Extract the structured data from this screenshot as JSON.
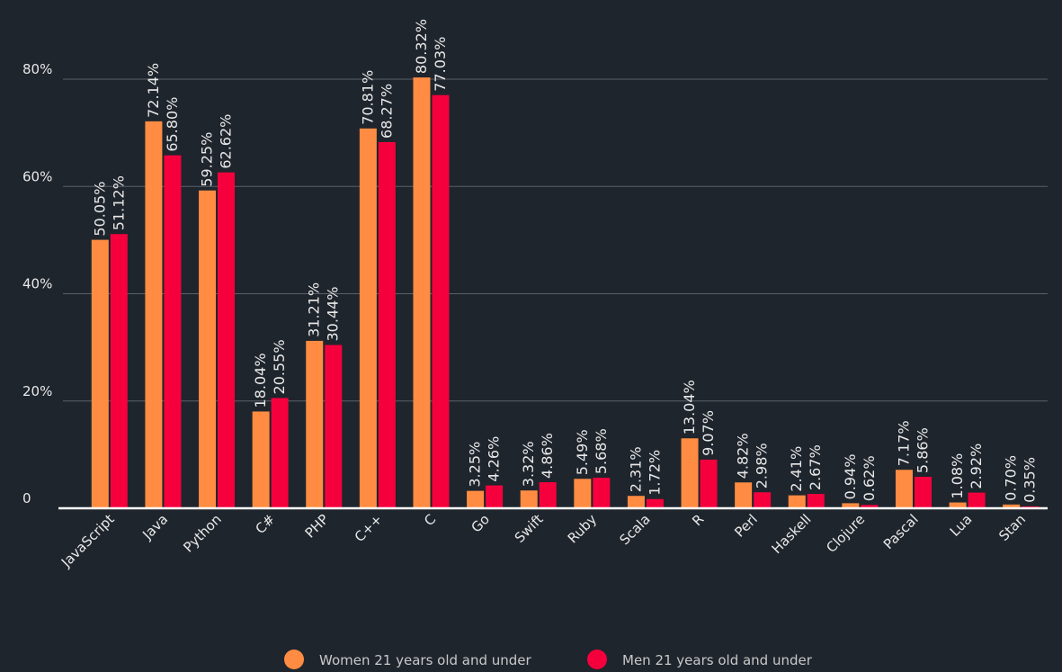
{
  "chart_data": {
    "type": "bar",
    "categories": [
      "JavaScript",
      "Java",
      "Python",
      "C#",
      "PHP",
      "C++",
      "C",
      "Go",
      "Swift",
      "Ruby",
      "Scala",
      "R",
      "Perl",
      "Haskell",
      "Clojure",
      "Pascal",
      "Lua",
      "Stan"
    ],
    "series": [
      {
        "name": "Women 21 years old and under",
        "color": "#ff8c42",
        "values": [
          50.05,
          72.14,
          59.25,
          18.04,
          31.21,
          70.81,
          80.32,
          3.25,
          3.32,
          5.49,
          2.31,
          13.04,
          4.82,
          2.41,
          0.94,
          7.17,
          1.08,
          0.7
        ],
        "value_labels": [
          "50.05%",
          "72.14%",
          "59.25%",
          "18.04%",
          "31.21%",
          "70.81%",
          "80.32%",
          "3.25%",
          "3.32%",
          "5.49%",
          "2.31%",
          "13.04%",
          "4.82%",
          "2.41%",
          "0.94%",
          "7.17%",
          "1.08%",
          "0.70%"
        ]
      },
      {
        "name": "Men 21 years old and under",
        "color": "#f5003d",
        "values": [
          51.12,
          65.8,
          62.62,
          20.55,
          30.44,
          68.27,
          77.03,
          4.26,
          4.86,
          5.68,
          1.72,
          9.07,
          2.98,
          2.67,
          0.62,
          5.86,
          2.92,
          0.35
        ],
        "value_labels": [
          "51.12%",
          "65.80%",
          "62.62%",
          "20.55%",
          "30.44%",
          "68.27%",
          "77.03%",
          "4.26%",
          "4.86%",
          "5.68%",
          "1.72%",
          "9.07%",
          "2.98%",
          "2.67%",
          "0.62%",
          "5.86%",
          "2.92%",
          "0.35%"
        ]
      }
    ],
    "ylim": [
      0,
      90
    ],
    "yticks": [
      0,
      {
        "value": 20,
        "label": "20%"
      },
      {
        "value": 40,
        "label": "40%"
      },
      {
        "value": 60,
        "label": "60%"
      },
      {
        "value": 80,
        "label": "80%"
      }
    ],
    "grid": true
  }
}
